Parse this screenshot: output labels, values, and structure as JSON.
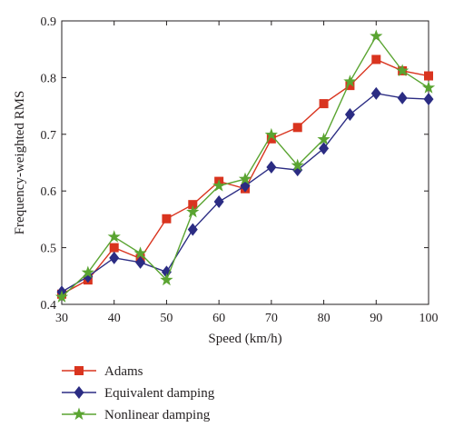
{
  "chart_data": {
    "type": "line",
    "xlabel": "Speed (km/h)",
    "ylabel": "Frequency-weighted RMS",
    "xlim": [
      30,
      100
    ],
    "ylim": [
      0.4,
      0.9
    ],
    "xticks": [
      30,
      40,
      50,
      60,
      70,
      80,
      90,
      100
    ],
    "yticks": [
      0.4,
      0.5,
      0.6,
      0.7,
      0.8,
      0.9
    ],
    "grid": false,
    "legend_position": "below",
    "x": [
      30,
      35,
      40,
      45,
      50,
      55,
      60,
      65,
      70,
      75,
      80,
      85,
      90,
      95,
      100
    ],
    "series": [
      {
        "name": "Adams",
        "marker": "square",
        "color": "#d9341f",
        "values": [
          0.418,
          0.443,
          0.5,
          0.481,
          0.551,
          0.576,
          0.617,
          0.604,
          0.692,
          0.712,
          0.754,
          0.786,
          0.832,
          0.812,
          0.803
        ]
      },
      {
        "name": "Equivalent damping",
        "marker": "diamond",
        "color": "#2b2c83",
        "values": [
          0.422,
          0.449,
          0.482,
          0.474,
          0.457,
          0.532,
          0.581,
          0.609,
          0.642,
          0.637,
          0.675,
          0.735,
          0.772,
          0.764,
          0.762
        ]
      },
      {
        "name": "Nonlinear damping",
        "marker": "star",
        "color": "#5aa431",
        "values": [
          0.413,
          0.456,
          0.519,
          0.49,
          0.443,
          0.563,
          0.609,
          0.621,
          0.699,
          0.645,
          0.691,
          0.793,
          0.873,
          0.812,
          0.782
        ]
      }
    ]
  }
}
